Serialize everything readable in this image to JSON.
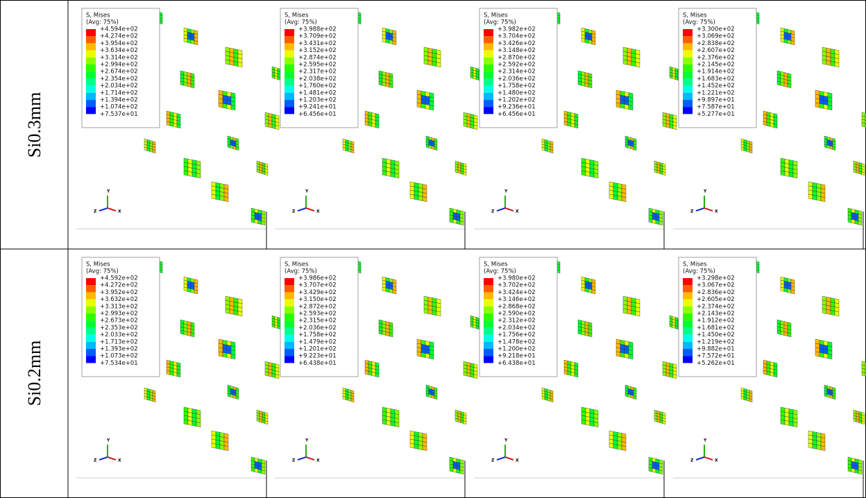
{
  "rows": [
    {
      "label": "Si0.3mm",
      "panels": [
        {
          "legend_title": "S, Mises",
          "legend_subtitle": "(Avg: 75%)",
          "legend_values": [
            "+4.594e+02",
            "+4.274e+02",
            "+3.954e+02",
            "+3.634e+02",
            "+3.314e+02",
            "+2.994e+02",
            "+2.674e+02",
            "+2.354e+02",
            "+2.034e+02",
            "+1.714e+02",
            "+1.394e+02",
            "+1.074e+02",
            "+7.537e+01"
          ]
        },
        {
          "legend_title": "S, Mises",
          "legend_subtitle": "(Avg: 75%)",
          "legend_values": [
            "+3.988e+02",
            "+3.709e+02",
            "+3.431e+02",
            "+3.152e+02",
            "+2.874e+02",
            "+2.595e+02",
            "+2.317e+02",
            "+2.038e+02",
            "+1.760e+02",
            "+1.481e+02",
            "+1.203e+02",
            "+9.241e+01",
            "+6.456e+01"
          ]
        },
        {
          "legend_title": "S, Mises",
          "legend_subtitle": "(Avg: 75%)",
          "legend_values": [
            "+3.982e+02",
            "+3.704e+02",
            "+3.426e+02",
            "+3.148e+02",
            "+2.870e+02",
            "+2.592e+02",
            "+2.314e+02",
            "+2.036e+02",
            "+1.758e+02",
            "+1.480e+02",
            "+1.202e+02",
            "+9.236e+01",
            "+6.456e+01"
          ]
        },
        {
          "legend_title": "S, Mises",
          "legend_subtitle": "(Avg: 75%)",
          "legend_values": [
            "+3.300e+02",
            "+3.069e+02",
            "+2.838e+02",
            "+2.607e+02",
            "+2.376e+02",
            "+2.145e+02",
            "+1.914e+02",
            "+1.683e+02",
            "+1.452e+02",
            "+1.221e+02",
            "+9.897e+01",
            "+7.587e+01",
            "+5.277e+01"
          ]
        }
      ]
    },
    {
      "label": "Si0.2mm",
      "panels": [
        {
          "legend_title": "S, Mises",
          "legend_subtitle": "(Avg: 75%)",
          "legend_values": [
            "+4.592e+02",
            "+4.272e+02",
            "+3.952e+02",
            "+3.632e+02",
            "+3.313e+02",
            "+2.993e+02",
            "+2.673e+02",
            "+2.353e+02",
            "+2.033e+02",
            "+1.713e+02",
            "+1.393e+02",
            "+1.073e+02",
            "+7.534e+01"
          ]
        },
        {
          "legend_title": "S, Mises",
          "legend_subtitle": "(Avg: 75%)",
          "legend_values": [
            "+3.986e+02",
            "+3.707e+02",
            "+3.429e+02",
            "+3.150e+02",
            "+2.872e+02",
            "+2.593e+02",
            "+2.315e+02",
            "+2.036e+02",
            "+1.758e+02",
            "+1.479e+02",
            "+1.201e+02",
            "+9.223e+01",
            "+6.438e+01"
          ]
        },
        {
          "legend_title": "S, Mises",
          "legend_subtitle": "(Avg: 75%)",
          "legend_values": [
            "+3.980e+02",
            "+3.702e+02",
            "+3.424e+02",
            "+3.146e+02",
            "+2.868e+02",
            "+2.590e+02",
            "+2.312e+02",
            "+2.034e+02",
            "+1.756e+02",
            "+1.478e+02",
            "+1.200e+02",
            "+9.218e+01",
            "+6.438e+01"
          ]
        },
        {
          "legend_title": "S, Mises",
          "legend_subtitle": "(Avg: 75%)",
          "legend_values": [
            "+3.298e+02",
            "+3.067e+02",
            "+2.836e+02",
            "+2.605e+02",
            "+2.374e+02",
            "+2.143e+02",
            "+1.912e+02",
            "+1.681e+02",
            "+1.450e+02",
            "+1.219e+02",
            "+9.882e+01",
            "+7.572e+01",
            "+5.262e+01"
          ]
        }
      ]
    }
  ],
  "triad": {
    "y": "Y",
    "z": "Z",
    "x": "X"
  }
}
